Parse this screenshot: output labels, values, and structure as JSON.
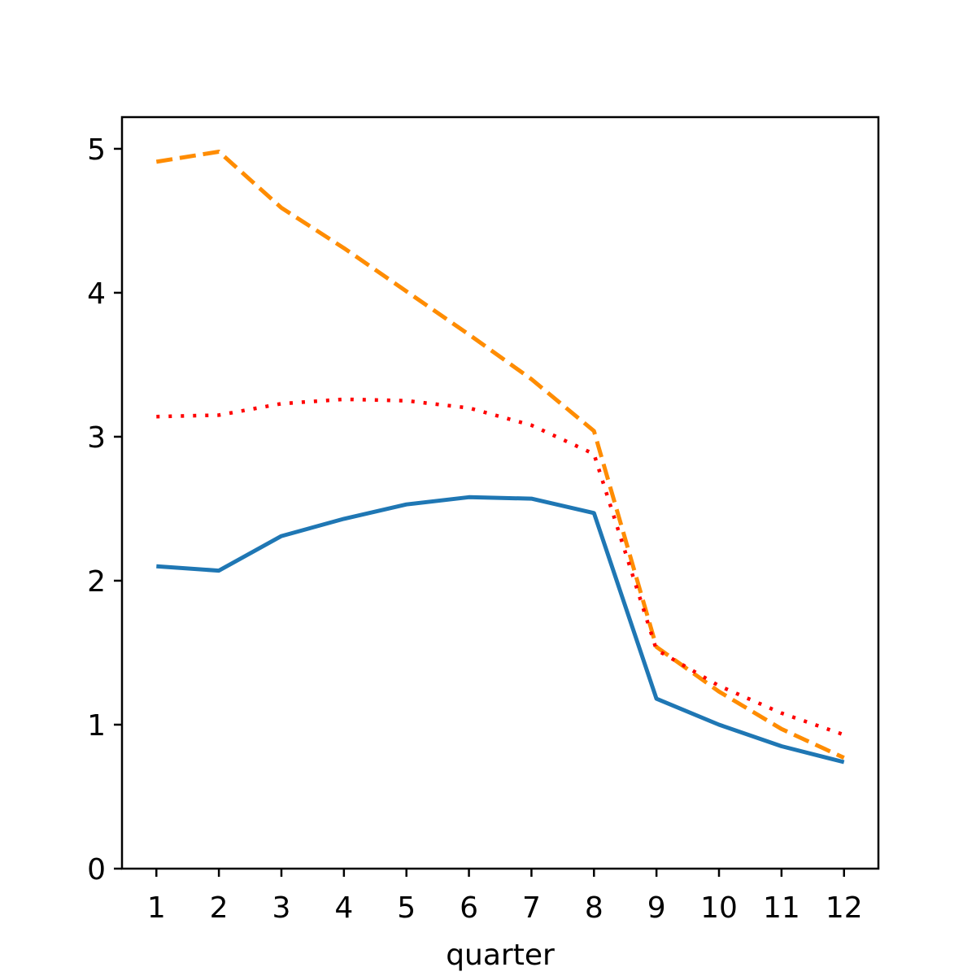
{
  "chart_data": {
    "type": "line",
    "title": "",
    "xlabel": "quarter",
    "ylabel": "",
    "x": [
      1,
      2,
      3,
      4,
      5,
      6,
      7,
      8,
      9,
      10,
      11,
      12
    ],
    "x_tick_labels": [
      "1",
      "2",
      "3",
      "4",
      "5",
      "6",
      "7",
      "8",
      "9",
      "10",
      "11",
      "12"
    ],
    "y_ticks": [
      0,
      1,
      2,
      3,
      4,
      5
    ],
    "y_tick_labels": [
      "0",
      "1",
      "2",
      "3",
      "4",
      "5"
    ],
    "xlim": [
      0.45,
      12.55
    ],
    "ylim": [
      0,
      5.22
    ],
    "grid": false,
    "legend": "none",
    "series": [
      {
        "color": "#1f77b4",
        "style": "solid",
        "values": [
          2.1,
          2.07,
          2.31,
          2.43,
          2.53,
          2.58,
          2.57,
          2.47,
          1.18,
          1.0,
          0.85,
          0.74
        ]
      },
      {
        "color": "#ff8c00",
        "style": "dashed",
        "values": [
          4.91,
          4.98,
          4.59,
          4.31,
          4.01,
          3.71,
          3.4,
          3.04,
          1.54,
          1.23,
          0.97,
          0.77
        ]
      },
      {
        "color": "#ff0000",
        "style": "dotted",
        "values": [
          3.14,
          3.15,
          3.23,
          3.26,
          3.25,
          3.2,
          3.08,
          2.88,
          1.52,
          1.27,
          1.08,
          0.93
        ]
      }
    ]
  }
}
